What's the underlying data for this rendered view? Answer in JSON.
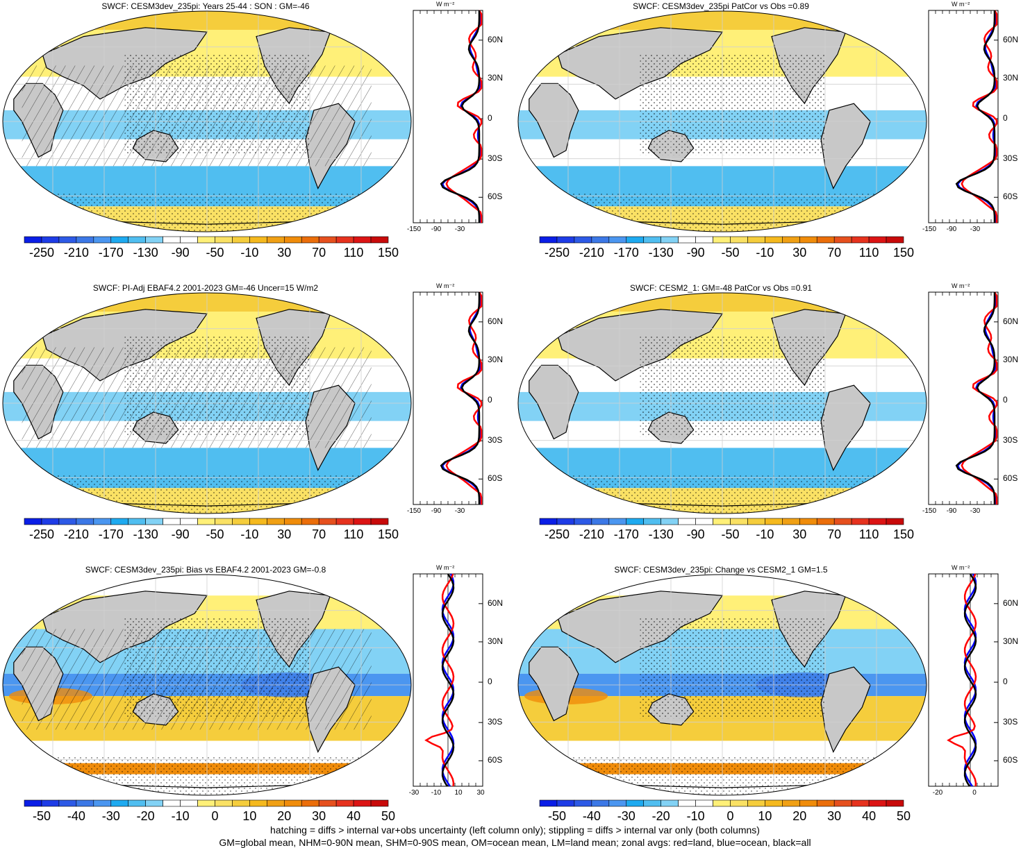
{
  "panels": [
    {
      "title": "SWCF: CESM3dev_235pi: Years 25-44 : SON : GM=-46",
      "colorbar": [
        "-250",
        "-210",
        "-170",
        "-130",
        "-90",
        "-50",
        "-10",
        "30",
        "70",
        "110",
        "150"
      ],
      "profile_ticks": [
        "-150",
        "-90",
        "-30"
      ],
      "type": "mean"
    },
    {
      "title": "SWCF: CESM3dev_235pi PatCor vs Obs =0.89",
      "colorbar": [
        "-250",
        "-210",
        "-170",
        "-130",
        "-90",
        "-50",
        "-10",
        "30",
        "70",
        "110",
        "150"
      ],
      "profile_ticks": [
        "-150",
        "-90",
        "-30"
      ],
      "type": "mean"
    },
    {
      "title": "SWCF: PI-Adj EBAF4.2 2001-2023 GM=-46 Uncer=15 W/m2",
      "colorbar": [
        "-250",
        "-210",
        "-170",
        "-130",
        "-90",
        "-50",
        "-10",
        "30",
        "70",
        "110",
        "150"
      ],
      "profile_ticks": [
        "-150",
        "-90",
        "-30"
      ],
      "type": "mean"
    },
    {
      "title": "SWCF: CESM2_1: GM=-48 PatCor vs Obs =0.91",
      "colorbar": [
        "-250",
        "-210",
        "-170",
        "-130",
        "-90",
        "-50",
        "-10",
        "30",
        "70",
        "110",
        "150"
      ],
      "profile_ticks": [
        "-150",
        "-90",
        "-30"
      ],
      "type": "mean"
    },
    {
      "title": "SWCF: CESM3dev_235pi: Bias vs EBAF4.2 2001-2023  GM=-0.8",
      "colorbar": [
        "-50",
        "-40",
        "-30",
        "-20",
        "-10",
        "0",
        "10",
        "20",
        "30",
        "40",
        "50"
      ],
      "profile_ticks": [
        "-30",
        "-10",
        "10",
        "30"
      ],
      "type": "diff"
    },
    {
      "title": "SWCF: CESM3dev_235pi: Change vs CESM2_1 GM=1.5",
      "colorbar": [
        "-50",
        "-40",
        "-30",
        "-20",
        "-10",
        "0",
        "10",
        "20",
        "30",
        "40",
        "50"
      ],
      "profile_ticks": [
        "-20",
        "0"
      ],
      "type": "diff"
    }
  ],
  "lat_labels": [
    "60N",
    "30N",
    "0",
    "30S",
    "60S"
  ],
  "units": "W m⁻²",
  "palette": [
    "#0a1ee6",
    "#1e3ce6",
    "#2d5ae6",
    "#3c78e6",
    "#4b96f0",
    "#1eaaf0",
    "#50bef0",
    "#82d2f5",
    "#ffffff",
    "#ffffff",
    "#fff078",
    "#fae164",
    "#f5cd3c",
    "#f5b91e",
    "#f0a014",
    "#f08c0a",
    "#eb6e0a",
    "#e6501e",
    "#e6321e",
    "#dc1414",
    "#c80a0a"
  ],
  "footer": {
    "line1": "hatching = diffs > internal var+obs uncertainty (left column only); stippling = diffs > internal var only (both columns)",
    "line2": "GM=global mean, NHM=0-90N mean, SHM=0-90S mean, OM=ocean mean, LM=land mean; zonal avgs: red=land, blue=ocean, black=all"
  }
}
